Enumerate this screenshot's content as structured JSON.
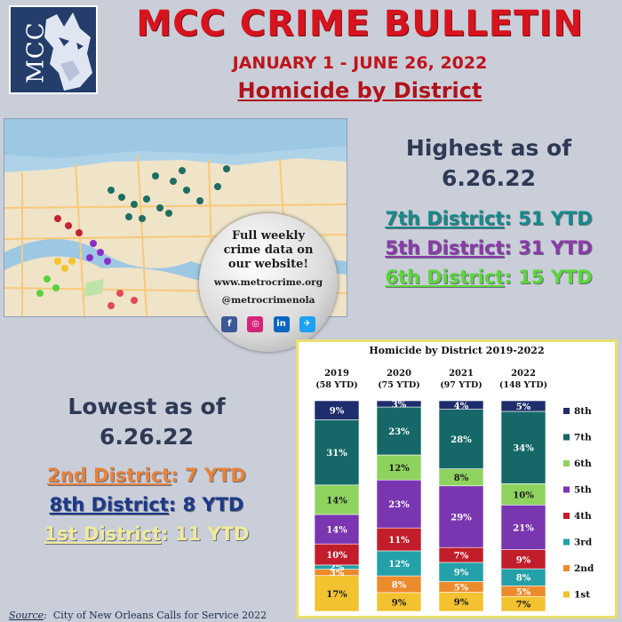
{
  "logo_text": "MCC",
  "header": {
    "title": "MCC CRIME BULLETIN",
    "subtitle": "JANUARY 1 - JUNE 26, 2022",
    "heading": "Homicide by District"
  },
  "circle": {
    "line1": "Full weekly",
    "line2": "crime data on",
    "line3": "our website!",
    "url": "www.metrocrime.org",
    "handle": "@metrocrimenola",
    "social_icons": [
      "facebook-icon",
      "instagram-icon",
      "linkedin-icon",
      "twitter-icon"
    ]
  },
  "highest": {
    "heading_line1": "Highest as of",
    "heading_line2": "6.26.22",
    "items": [
      {
        "district": "7th District",
        "value": "51 YTD",
        "color": "#17898a"
      },
      {
        "district": "5th District",
        "value": "31 YTD",
        "color": "#8b3aa8"
      },
      {
        "district": "6th District",
        "value": "15 YTD",
        "color": "#5cd63a"
      }
    ]
  },
  "lowest": {
    "heading_line1": "Lowest as of",
    "heading_line2": "6.26.22",
    "items": [
      {
        "district": "2nd District",
        "value": "7 YTD",
        "color": "#e8823a"
      },
      {
        "district": "8th District",
        "value": "8 YTD",
        "color": "#1d3a8a"
      },
      {
        "district": "1st District",
        "value": "11 YTD",
        "color": "#f0ea9a"
      }
    ]
  },
  "source": {
    "label": "Source",
    "text": "City of New Orleans Calls for Service 2022"
  },
  "colors": {
    "8th": "#1e2d6b",
    "7th": "#166868",
    "6th": "#8fd35f",
    "5th": "#7a36b0",
    "4th": "#c21d2a",
    "3rd": "#24a0a8",
    "2nd": "#ec8b2c",
    "1st": "#f2c230"
  },
  "chart_data": {
    "type": "bar",
    "stacked": true,
    "percent": true,
    "title": "Homicide by District 2019-2022",
    "categories": [
      "2019",
      "2020",
      "2021",
      "2022"
    ],
    "category_sublabels": [
      "(58 YTD)",
      "(75 YTD)",
      "(97 YTD)",
      "(148 YTD)"
    ],
    "legend_position": "right",
    "series": [
      {
        "name": "1st",
        "values": [
          17,
          9,
          9,
          7
        ],
        "labels": [
          "17%",
          "9%",
          "9%",
          "7%"
        ]
      },
      {
        "name": "2nd",
        "values": [
          3,
          8,
          5,
          5
        ],
        "labels": [
          "3%",
          "8%",
          "5%",
          "5%"
        ]
      },
      {
        "name": "3rd",
        "values": [
          2,
          12,
          9,
          8
        ],
        "labels": [
          "2%",
          "12%",
          "9%",
          "8%"
        ]
      },
      {
        "name": "4th",
        "values": [
          10,
          11,
          7,
          9
        ],
        "labels": [
          "10%",
          "11%",
          "7%",
          "9%"
        ]
      },
      {
        "name": "5th",
        "values": [
          14,
          23,
          29,
          21
        ],
        "labels": [
          "14%",
          "23%",
          "29%",
          "21%"
        ]
      },
      {
        "name": "6th",
        "values": [
          14,
          12,
          8,
          10
        ],
        "labels": [
          "14%",
          "12%",
          "8%",
          "10%"
        ]
      },
      {
        "name": "7th",
        "values": [
          31,
          23,
          28,
          34
        ],
        "labels": [
          "31%",
          "23%",
          "28%",
          "34%"
        ]
      },
      {
        "name": "8th",
        "values": [
          9,
          3,
          4,
          5
        ],
        "labels": [
          "9%",
          "3%",
          "4%",
          "5%"
        ]
      }
    ]
  }
}
